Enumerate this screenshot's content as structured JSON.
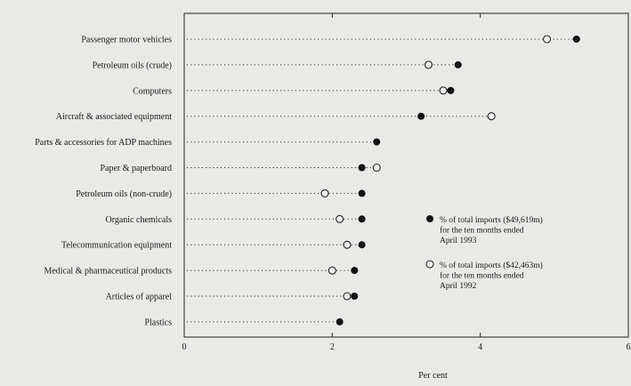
{
  "chart_data": {
    "type": "scatter",
    "xlabel": "Per cent",
    "xlim": [
      0,
      6
    ],
    "x_ticks": [
      "0",
      "2",
      "4",
      "6"
    ],
    "grid": false,
    "legend_position": "right, mid-plot",
    "categories": [
      "Passenger motor vehicles",
      "Petroleum oils (crude)",
      "Computers",
      "Aircraft & associated equipment",
      "Parts & accessories for ADP machines",
      "Paper & paperboard",
      "Petroleum oils (non-crude)",
      "Organic chemicals",
      "Telecommunication equipment",
      "Medical & pharmaceutical products",
      "Articles of apparel",
      "Plastics"
    ],
    "series": [
      {
        "name": "% of total imports ($49,619m) for the ten months ended April 1993",
        "legend_lines": [
          "% of total imports ($49,619m)",
          "for the ten months ended",
          "April 1993"
        ],
        "marker": "filled-circle",
        "values": [
          5.3,
          3.7,
          3.6,
          3.2,
          2.6,
          2.4,
          2.4,
          2.4,
          2.4,
          2.3,
          2.3,
          2.1
        ]
      },
      {
        "name": "% of total imports ($42,463m) for the ten months ended April 1992",
        "legend_lines": [
          "% of total imports ($42,463m)",
          "for the ten months ended",
          "April 1992"
        ],
        "marker": "open-circle",
        "values": [
          4.9,
          3.3,
          3.5,
          4.15,
          null,
          2.6,
          1.9,
          2.1,
          2.2,
          2.0,
          2.2,
          null
        ]
      }
    ]
  }
}
